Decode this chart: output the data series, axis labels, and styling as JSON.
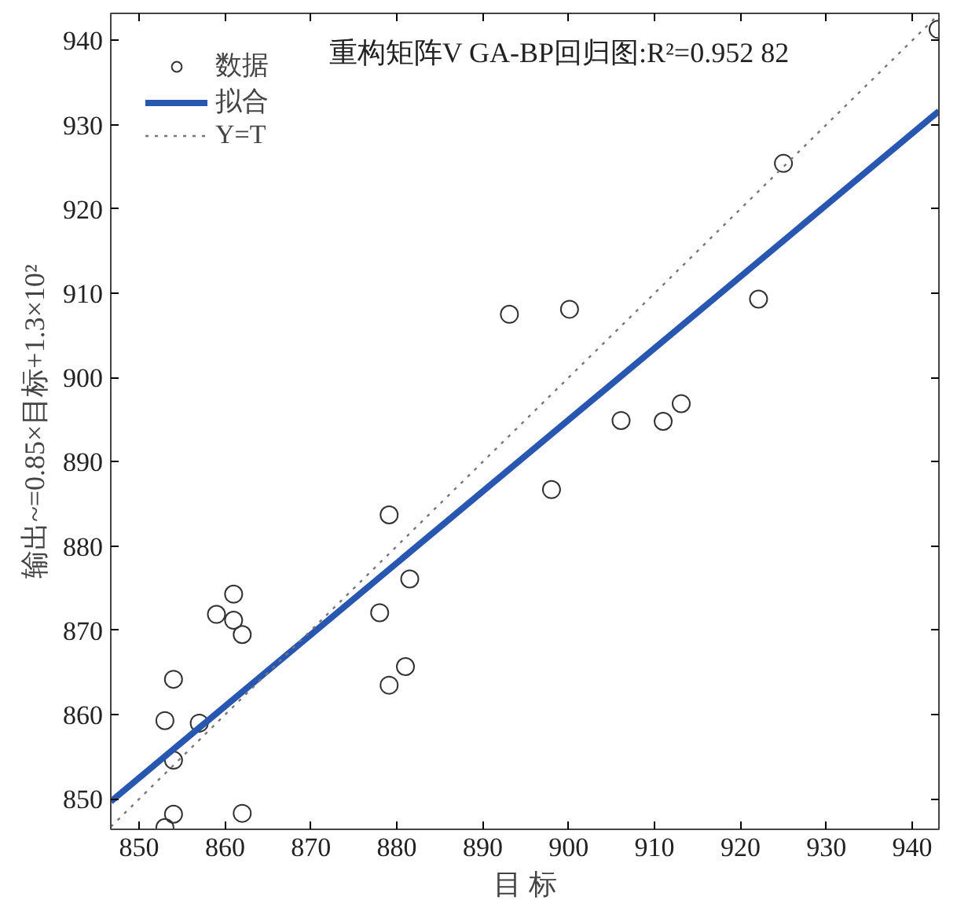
{
  "chart_data": {
    "type": "scatter",
    "title": "重构矩阵V GA-BP回归图:R²=0.952 82",
    "xlabel": "目 标",
    "ylabel": "输出~=0.85×目标+1.3×10²",
    "xlim": [
      846.7,
      943.1
    ],
    "ylim": [
      846.4,
      943.2
    ],
    "xticks": [
      850,
      860,
      870,
      880,
      890,
      900,
      910,
      920,
      930,
      940
    ],
    "yticks": [
      850,
      860,
      870,
      880,
      890,
      900,
      910,
      920,
      930,
      940
    ],
    "grid": false,
    "legend": "top left",
    "series": [
      {
        "name": "数据",
        "marker": "circle",
        "color": "#333333",
        "x": [
          853.0,
          853.0,
          854.0,
          854.0,
          854.0,
          857.0,
          859.0,
          861.0,
          861.0,
          862.0,
          862.0,
          878.0,
          879.1,
          879.1,
          881.0,
          881.5,
          898.0,
          893.1,
          900.1,
          906.1,
          911.0,
          913.1,
          922.1,
          925.0,
          943.0
        ],
        "values": [
          846.6,
          859.3,
          864.2,
          854.6,
          848.2,
          859.0,
          871.9,
          874.3,
          871.2,
          869.5,
          848.3,
          872.1,
          883.7,
          863.5,
          865.7,
          876.1,
          886.7,
          907.5,
          908.1,
          894.9,
          894.8,
          896.9,
          909.3,
          925.4,
          941.3
        ]
      },
      {
        "name": "拟合",
        "type": "line",
        "line_style": "solid",
        "color": "#2757b0",
        "x": [
          846.7,
          943.1
        ],
        "values": [
          849.7,
          931.6
        ]
      },
      {
        "name": "Y=T",
        "type": "line",
        "line_style": "dotted",
        "color": "#777777",
        "x": [
          846.7,
          943.1
        ],
        "values": [
          846.7,
          943.1
        ]
      }
    ]
  }
}
